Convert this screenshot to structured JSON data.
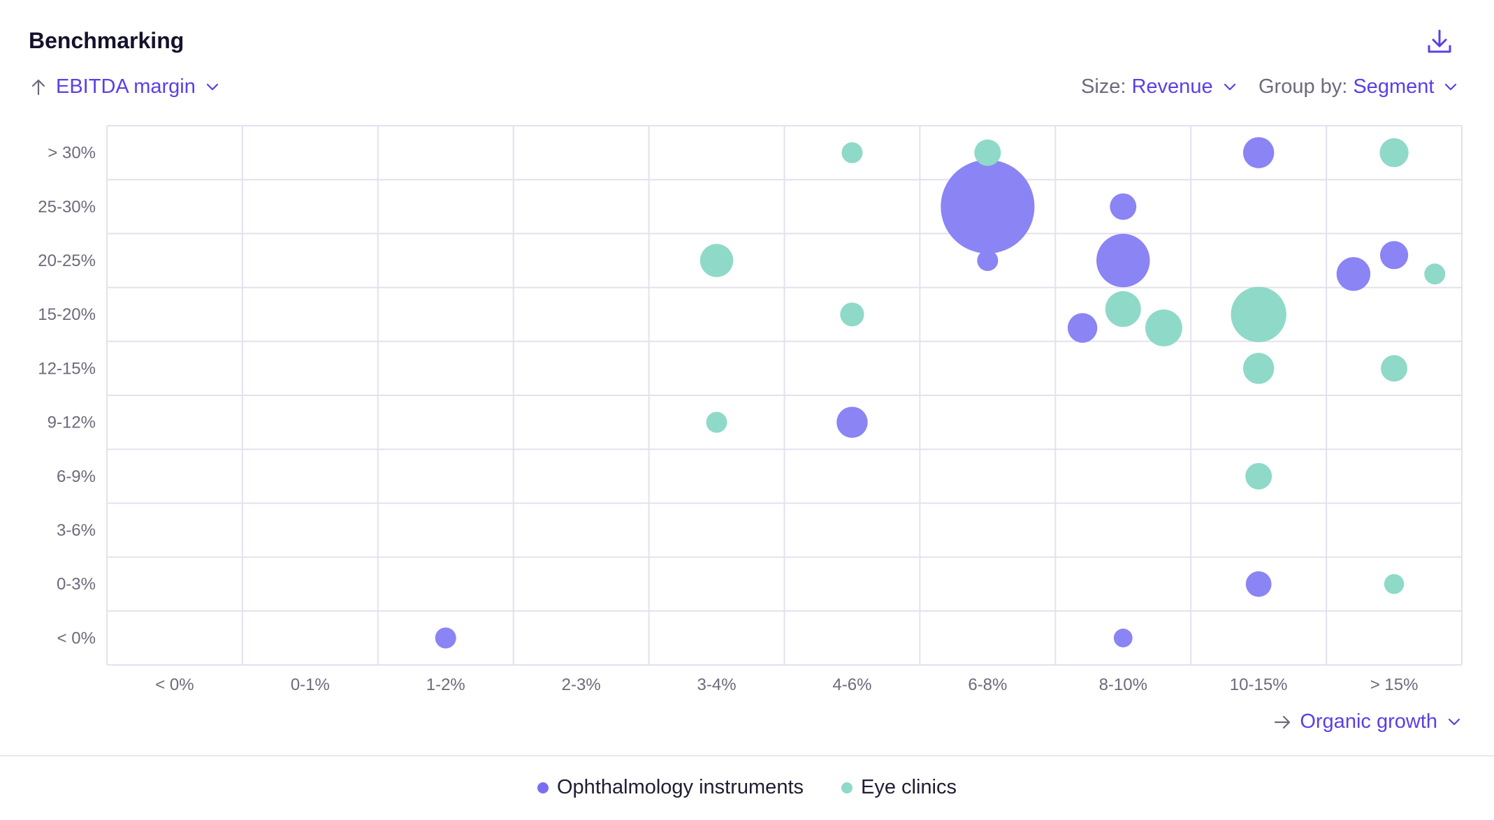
{
  "header": {
    "title": "Benchmarking",
    "download_icon": "download-icon"
  },
  "controls": {
    "y_axis": {
      "icon": "arrow-up-icon",
      "label": "EBITDA margin"
    },
    "size": {
      "prefix": "Size:",
      "value": "Revenue"
    },
    "group_by": {
      "prefix": "Group by:",
      "value": "Segment"
    },
    "x_axis": {
      "icon": "arrow-right-icon",
      "label": "Organic growth"
    }
  },
  "colors": {
    "ophthalmology": "#8b84f5",
    "eye_clinics": "#8fd9c8",
    "grid": "#e2e2ee",
    "accent": "#5b3fe6"
  },
  "chart_data": {
    "type": "scatter",
    "x_categories": [
      "< 0%",
      "0-1%",
      "1-2%",
      "2-3%",
      "3-4%",
      "4-6%",
      "6-8%",
      "8-10%",
      "10-15%",
      "> 15%"
    ],
    "y_categories": [
      "> 30%",
      "25-30%",
      "20-25%",
      "15-20%",
      "12-15%",
      "9-12%",
      "6-9%",
      "3-6%",
      "0-3%",
      "< 0%"
    ],
    "xlabel": "Organic growth",
    "ylabel": "EBITDA margin",
    "size_by": "Revenue",
    "grid": true,
    "legend_position": "bottom-center",
    "series": [
      {
        "name": "Ophthalmology instruments",
        "color": "#8b84f5",
        "points": [
          {
            "x": "10-15%",
            "y": "> 30%",
            "size": 2.2
          },
          {
            "x": "6-8%",
            "y": "25-30%",
            "size": 20
          },
          {
            "x": "8-10%",
            "y": "25-30%",
            "size": 1.6
          },
          {
            "x": "6-8%",
            "y": "20-25%",
            "size": 1
          },
          {
            "x": "8-10%",
            "y": "20-25%",
            "size": 6.5
          },
          {
            "x": "> 15%",
            "y": "20-25%",
            "size": 2.6
          },
          {
            "x": "> 15%",
            "y": "20-25%",
            "size": 1.8
          },
          {
            "x": "8-10%",
            "y": "15-20%",
            "size": 2
          },
          {
            "x": "4-6%",
            "y": "9-12%",
            "size": 2.2
          },
          {
            "x": "10-15%",
            "y": "0-3%",
            "size": 1.5
          },
          {
            "x": "1-2%",
            "y": "< 0%",
            "size": 1
          },
          {
            "x": "8-10%",
            "y": "< 0%",
            "size": 0.8
          }
        ]
      },
      {
        "name": "Eye clinics",
        "color": "#8fd9c8",
        "points": [
          {
            "x": "4-6%",
            "y": "> 30%",
            "size": 1
          },
          {
            "x": "6-8%",
            "y": "> 30%",
            "size": 1.6
          },
          {
            "x": "> 15%",
            "y": "> 30%",
            "size": 1.9
          },
          {
            "x": "3-4%",
            "y": "20-25%",
            "size": 2.5
          },
          {
            "x": "> 15%",
            "y": "20-25%",
            "size": 1
          },
          {
            "x": "4-6%",
            "y": "15-20%",
            "size": 1.3
          },
          {
            "x": "8-10%",
            "y": "15-20%",
            "size": 2.9
          },
          {
            "x": "8-10%",
            "y": "15-20%",
            "size": 3.1
          },
          {
            "x": "10-15%",
            "y": "15-20%",
            "size": 7
          },
          {
            "x": "10-15%",
            "y": "12-15%",
            "size": 2.2
          },
          {
            "x": "> 15%",
            "y": "12-15%",
            "size": 1.6
          },
          {
            "x": "3-4%",
            "y": "9-12%",
            "size": 1
          },
          {
            "x": "10-15%",
            "y": "6-9%",
            "size": 1.6
          },
          {
            "x": "> 15%",
            "y": "0-3%",
            "size": 0.9
          }
        ]
      }
    ]
  },
  "legend": {
    "items": [
      {
        "label": "Ophthalmology instruments",
        "color": "#8b84f5"
      },
      {
        "label": "Eye clinics",
        "color": "#8fd9c8"
      }
    ]
  }
}
